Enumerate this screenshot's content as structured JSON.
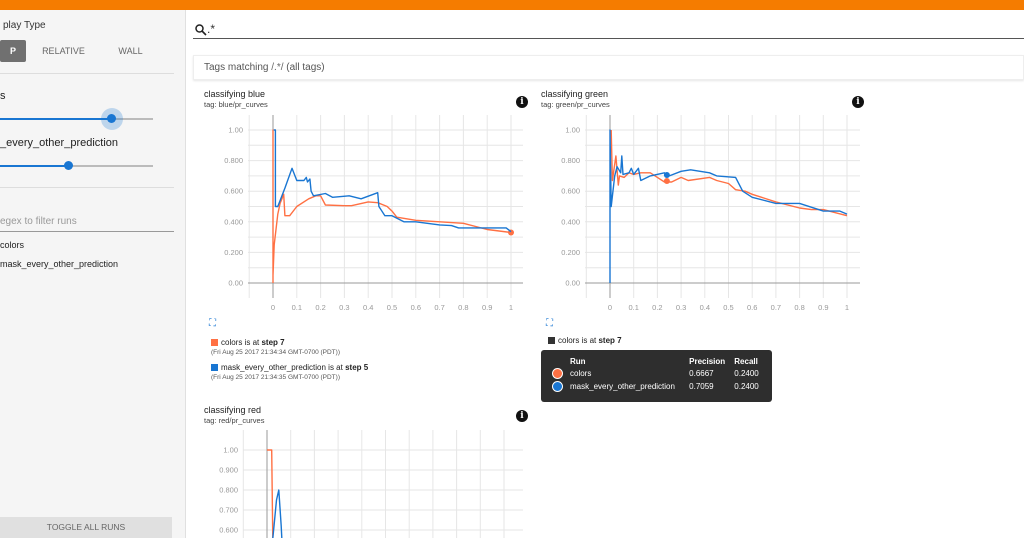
{
  "sidebar": {
    "display_type_title": "play Type",
    "display_types": [
      "P",
      "RELATIVE",
      "WALL"
    ],
    "run_sliders": [
      {
        "label": "s",
        "value_fraction": 0.74
      },
      {
        "label": "_every_other_prediction",
        "value_fraction": 0.45
      }
    ],
    "filter_placeholder": "egex to filter runs",
    "runs": [
      "colors",
      "mask_every_other_prediction"
    ],
    "toggle_all": "TOGGLE ALL RUNS"
  },
  "search": {
    "value": ".*",
    "icon": "search-icon"
  },
  "tags_bar": {
    "prefix": "Tags matching ",
    "pattern": "/.*/",
    "suffix": " (all tags)"
  },
  "colors": {
    "accent": "#f57c00",
    "colors_run": "#ff7043",
    "mask_run": "#1976d2"
  },
  "cards": [
    {
      "title": "classifying blue",
      "tag": "tag: blue/pr_curves",
      "legend": [
        {
          "run": "colors",
          "text": " is at ",
          "step": "step 7",
          "time": "(Fri Aug 25 2017 21:34:34 GMT-0700 (PDT))"
        },
        {
          "run": "mask_every_other_prediction",
          "text": " is at ",
          "step": "step 5",
          "time": "(Fri Aug 25 2017 21:34:35 GMT-0700 (PDT))"
        }
      ]
    },
    {
      "title": "classifying green",
      "tag": "tag: green/pr_curves",
      "legend": [
        {
          "run": "colors",
          "text": " is at ",
          "step": "step 7"
        }
      ],
      "tooltip": {
        "headers": [
          "Run",
          "Precision",
          "Recall"
        ],
        "rows": [
          {
            "run": "colors",
            "precision": "0.6667",
            "recall": "0.2400"
          },
          {
            "run": "mask_every_other_prediction",
            "precision": "0.7059",
            "recall": "0.2400"
          }
        ]
      }
    },
    {
      "title": "classifying red",
      "tag": "tag: red/pr_curves"
    }
  ],
  "chart_data": [
    {
      "type": "line",
      "title": "classifying blue",
      "xlim": [
        -0.1,
        1.05
      ],
      "ylim": [
        -0.1,
        1.1
      ],
      "grid": true,
      "xticks": [
        "0",
        "0.1",
        "0.2",
        "0.3",
        "0.4",
        "0.5",
        "0.6",
        "0.7",
        "0.8",
        "0.9",
        "1"
      ],
      "yticks": [
        "0.00",
        "0.200",
        "0.400",
        "0.600",
        "0.800",
        "1.00"
      ],
      "series": [
        {
          "name": "colors",
          "color": "#ff7043",
          "points": [
            [
              0,
              0
            ],
            [
              0,
              1.0
            ],
            [
              0,
              0.05
            ],
            [
              0.005,
              0.25
            ],
            [
              0.02,
              0.45
            ],
            [
              0.03,
              0.52
            ],
            [
              0.045,
              0.58
            ],
            [
              0.05,
              0.44
            ],
            [
              0.07,
              0.44
            ],
            [
              0.1,
              0.5
            ],
            [
              0.15,
              0.55
            ],
            [
              0.18,
              0.57
            ],
            [
              0.2,
              0.57
            ],
            [
              0.22,
              0.51
            ],
            [
              0.3,
              0.505
            ],
            [
              0.33,
              0.505
            ],
            [
              0.4,
              0.53
            ],
            [
              0.44,
              0.525
            ],
            [
              0.48,
              0.5
            ],
            [
              0.5,
              0.47
            ],
            [
              0.52,
              0.43
            ],
            [
              0.6,
              0.41
            ],
            [
              0.7,
              0.4
            ],
            [
              0.8,
              0.39
            ],
            [
              0.9,
              0.35
            ],
            [
              1.0,
              0.33
            ]
          ],
          "marker": [
            1.0,
            0.33
          ]
        },
        {
          "name": "mask_every_other_prediction",
          "color": "#1976d2",
          "points": [
            [
              0.003,
              1.0
            ],
            [
              0.01,
              1.0
            ],
            [
              0.01,
              0.5
            ],
            [
              0.02,
              0.5
            ],
            [
              0.05,
              0.62
            ],
            [
              0.08,
              0.75
            ],
            [
              0.1,
              0.67
            ],
            [
              0.13,
              0.67
            ],
            [
              0.14,
              0.69
            ],
            [
              0.145,
              0.66
            ],
            [
              0.155,
              0.68
            ],
            [
              0.16,
              0.6
            ],
            [
              0.17,
              0.57
            ],
            [
              0.22,
              0.585
            ],
            [
              0.25,
              0.56
            ],
            [
              0.32,
              0.57
            ],
            [
              0.37,
              0.55
            ],
            [
              0.44,
              0.59
            ],
            [
              0.445,
              0.5
            ],
            [
              0.47,
              0.44
            ],
            [
              0.5,
              0.44
            ],
            [
              0.55,
              0.4
            ],
            [
              0.6,
              0.4
            ],
            [
              0.7,
              0.38
            ],
            [
              0.75,
              0.375
            ],
            [
              0.78,
              0.36
            ],
            [
              0.9,
              0.36
            ],
            [
              0.98,
              0.36
            ],
            [
              1.0,
              0.335
            ]
          ]
        }
      ]
    },
    {
      "type": "line",
      "title": "classifying green",
      "xlim": [
        -0.1,
        1.05
      ],
      "ylim": [
        -0.1,
        1.1
      ],
      "grid": true,
      "xticks": [
        "0",
        "0.1",
        "0.2",
        "0.3",
        "0.4",
        "0.5",
        "0.6",
        "0.7",
        "0.8",
        "0.9",
        "1"
      ],
      "yticks": [
        "0.00",
        "0.200",
        "0.400",
        "0.600",
        "0.800",
        "1.00"
      ],
      "series": [
        {
          "name": "colors",
          "color": "#ff7043",
          "points": [
            [
              0.005,
              1.0
            ],
            [
              0.01,
              0.67
            ],
            [
              0.025,
              0.83
            ],
            [
              0.035,
              0.64
            ],
            [
              0.04,
              0.7
            ],
            [
              0.06,
              0.69
            ],
            [
              0.08,
              0.72
            ],
            [
              0.1,
              0.71
            ],
            [
              0.13,
              0.72
            ],
            [
              0.17,
              0.72
            ],
            [
              0.2,
              0.69
            ],
            [
              0.23,
              0.66
            ],
            [
              0.26,
              0.66
            ],
            [
              0.3,
              0.69
            ],
            [
              0.33,
              0.67
            ],
            [
              0.42,
              0.69
            ],
            [
              0.45,
              0.67
            ],
            [
              0.5,
              0.65
            ],
            [
              0.53,
              0.61
            ],
            [
              0.57,
              0.6
            ],
            [
              0.6,
              0.58
            ],
            [
              0.7,
              0.53
            ],
            [
              0.8,
              0.49
            ],
            [
              0.85,
              0.48
            ],
            [
              0.9,
              0.48
            ],
            [
              1.0,
              0.44
            ]
          ],
          "marker": [
            0.24,
            0.6667
          ]
        },
        {
          "name": "mask_every_other_prediction",
          "color": "#1976d2",
          "points": [
            [
              0,
              0
            ],
            [
              0,
              1.0
            ],
            [
              0.005,
              0.5
            ],
            [
              0.02,
              0.7
            ],
            [
              0.03,
              0.76
            ],
            [
              0.045,
              0.72
            ],
            [
              0.05,
              0.83
            ],
            [
              0.055,
              0.71
            ],
            [
              0.08,
              0.72
            ],
            [
              0.09,
              0.75
            ],
            [
              0.1,
              0.71
            ],
            [
              0.12,
              0.75
            ],
            [
              0.13,
              0.67
            ],
            [
              0.17,
              0.7
            ],
            [
              0.23,
              0.72
            ],
            [
              0.24,
              0.7
            ],
            [
              0.25,
              0.7
            ],
            [
              0.3,
              0.73
            ],
            [
              0.34,
              0.74
            ],
            [
              0.42,
              0.72
            ],
            [
              0.45,
              0.7
            ],
            [
              0.53,
              0.69
            ],
            [
              0.56,
              0.6
            ],
            [
              0.6,
              0.56
            ],
            [
              0.7,
              0.52
            ],
            [
              0.8,
              0.52
            ],
            [
              0.9,
              0.47
            ],
            [
              0.97,
              0.47
            ],
            [
              1.0,
              0.45
            ]
          ],
          "marker": [
            0.24,
            0.7059
          ]
        }
      ]
    },
    {
      "type": "line",
      "title": "classifying red",
      "xlim": [
        -0.1,
        1.05
      ],
      "ylim": [
        0.5,
        1.1
      ],
      "grid": true,
      "yticks": [
        "0.600",
        "0.700",
        "0.800",
        "0.900",
        "1.00"
      ],
      "series": [
        {
          "name": "colors",
          "color": "#ff7043",
          "points": [
            [
              0,
              1.0
            ],
            [
              0.02,
              1.0
            ],
            [
              0.025,
              0.5
            ]
          ]
        },
        {
          "name": "mask_every_other_prediction",
          "color": "#1976d2",
          "points": [
            [
              0.02,
              0.5
            ],
            [
              0.04,
              0.75
            ],
            [
              0.05,
              0.8
            ],
            [
              0.06,
              0.62
            ],
            [
              0.065,
              0.5
            ]
          ]
        }
      ]
    }
  ]
}
